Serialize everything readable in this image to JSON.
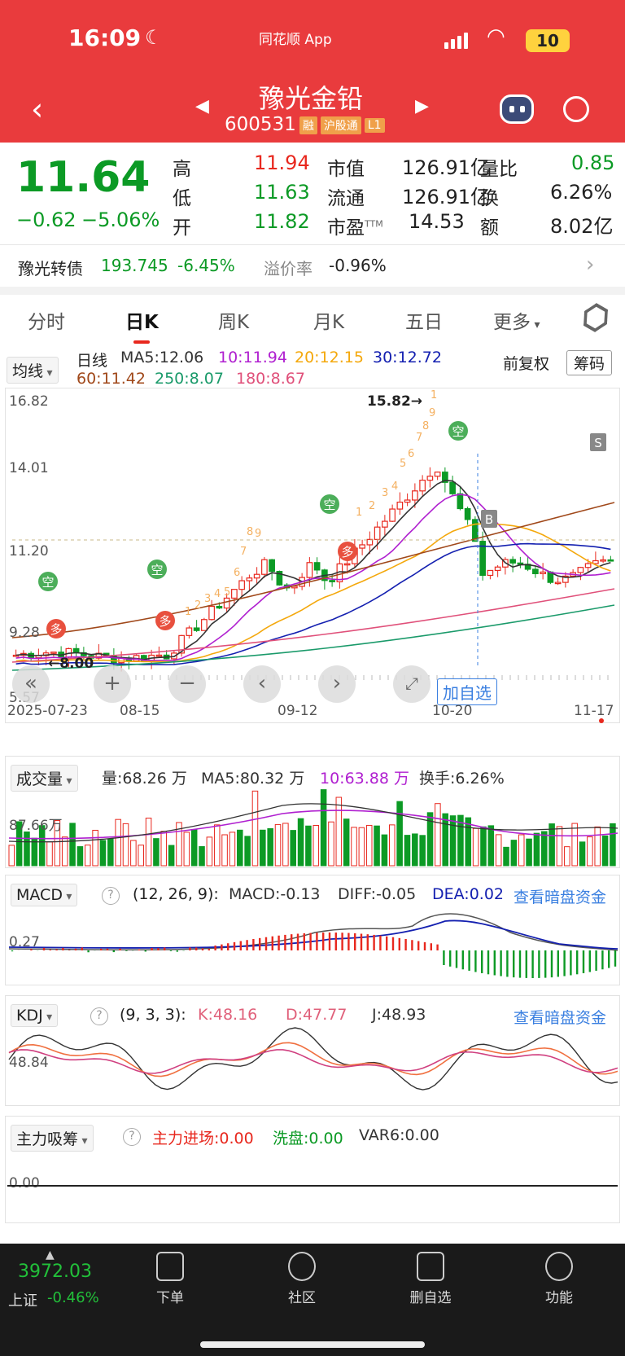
{
  "status": {
    "time": "16:09",
    "app": "同花顺 App",
    "battery": "10"
  },
  "header": {
    "name": "豫光金铅",
    "code": "600531",
    "tags": [
      "融",
      "沪股通",
      "L1"
    ]
  },
  "quote": {
    "price": "11.64",
    "change": "−0.62",
    "pct": "−5.06%",
    "high_l": "高",
    "high": "11.94",
    "low_l": "低",
    "low": "11.63",
    "open_l": "开",
    "open": "11.82",
    "mcap_l": "市值",
    "mcap": "126.91亿",
    "float_l": "流通",
    "float": "126.91亿",
    "pe_l": "市盈",
    "pe_sup": "TTM",
    "pe": "14.53",
    "vr_l": "量比",
    "vr": "0.85",
    "turn_l": "换",
    "turn": "6.26%",
    "amt_l": "额",
    "amt": "8.02亿"
  },
  "bond": {
    "name": "豫光转债",
    "price": "193.745",
    "pct": "-6.45%",
    "prem_l": "溢价率",
    "prem": "-0.96%"
  },
  "tabs": [
    "分时",
    "日K",
    "周K",
    "月K",
    "五日",
    "更多"
  ],
  "ma": {
    "sel": "均线",
    "period": "日线",
    "ma5": "MA5:12.06",
    "ma10": "10:11.94",
    "ma20": "20:12.15",
    "ma30": "30:12.72",
    "ma60": "60:11.42",
    "ma250": "250:8.07",
    "ma180": "180:8.67",
    "fq": "前复权",
    "chip": "筹码"
  },
  "kchart": {
    "y1": "16.82",
    "y2": "14.01",
    "y3": "11.20",
    "y4": "9.28",
    "y5": "5.57",
    "high_mark": "15.82",
    "low_mark": "8.00",
    "dates": [
      "2025-07-23",
      "08-15",
      "09-12",
      "10-20",
      "11-17"
    ],
    "add": "加自选",
    "signals": {
      "kong": "空",
      "duo": "多",
      "B": "B",
      "S": "S"
    },
    "seq": [
      "1",
      "2",
      "3",
      "4",
      "5",
      "6",
      "7",
      "8",
      "9"
    ]
  },
  "vol": {
    "sel": "成交量",
    "v": "量:68.26 万",
    "ma5": "MA5:80.32 万",
    "ma10": "10:63.88 万",
    "turn": "换手:6.26%",
    "y": "87.66万"
  },
  "macd": {
    "sel": "MACD",
    "param": "(12, 26, 9):",
    "m": "MACD:-0.13",
    "diff": "DIFF:-0.05",
    "dea": "DEA:0.02",
    "link": "查看暗盘资金",
    "y": "0.27"
  },
  "kdj": {
    "sel": "KDJ",
    "param": "(9, 3, 3):",
    "k": "K:48.16",
    "d": "D:47.77",
    "j": "J:48.93",
    "link": "查看暗盘资金",
    "y": "48.84"
  },
  "zl": {
    "sel": "主力吸筹",
    "a": "主力进场:0.00",
    "b": "洗盘:0.00",
    "c": "VAR6:0.00",
    "y": "0.00"
  },
  "bottom": {
    "index": "3972.03",
    "iname": "上证",
    "ipct": "-0.46%",
    "items": [
      "下单",
      "社区",
      "删自选",
      "功能"
    ]
  },
  "colors": {
    "header": "#e93b3d",
    "up": "#e8281e",
    "down": "#0c9a25"
  }
}
